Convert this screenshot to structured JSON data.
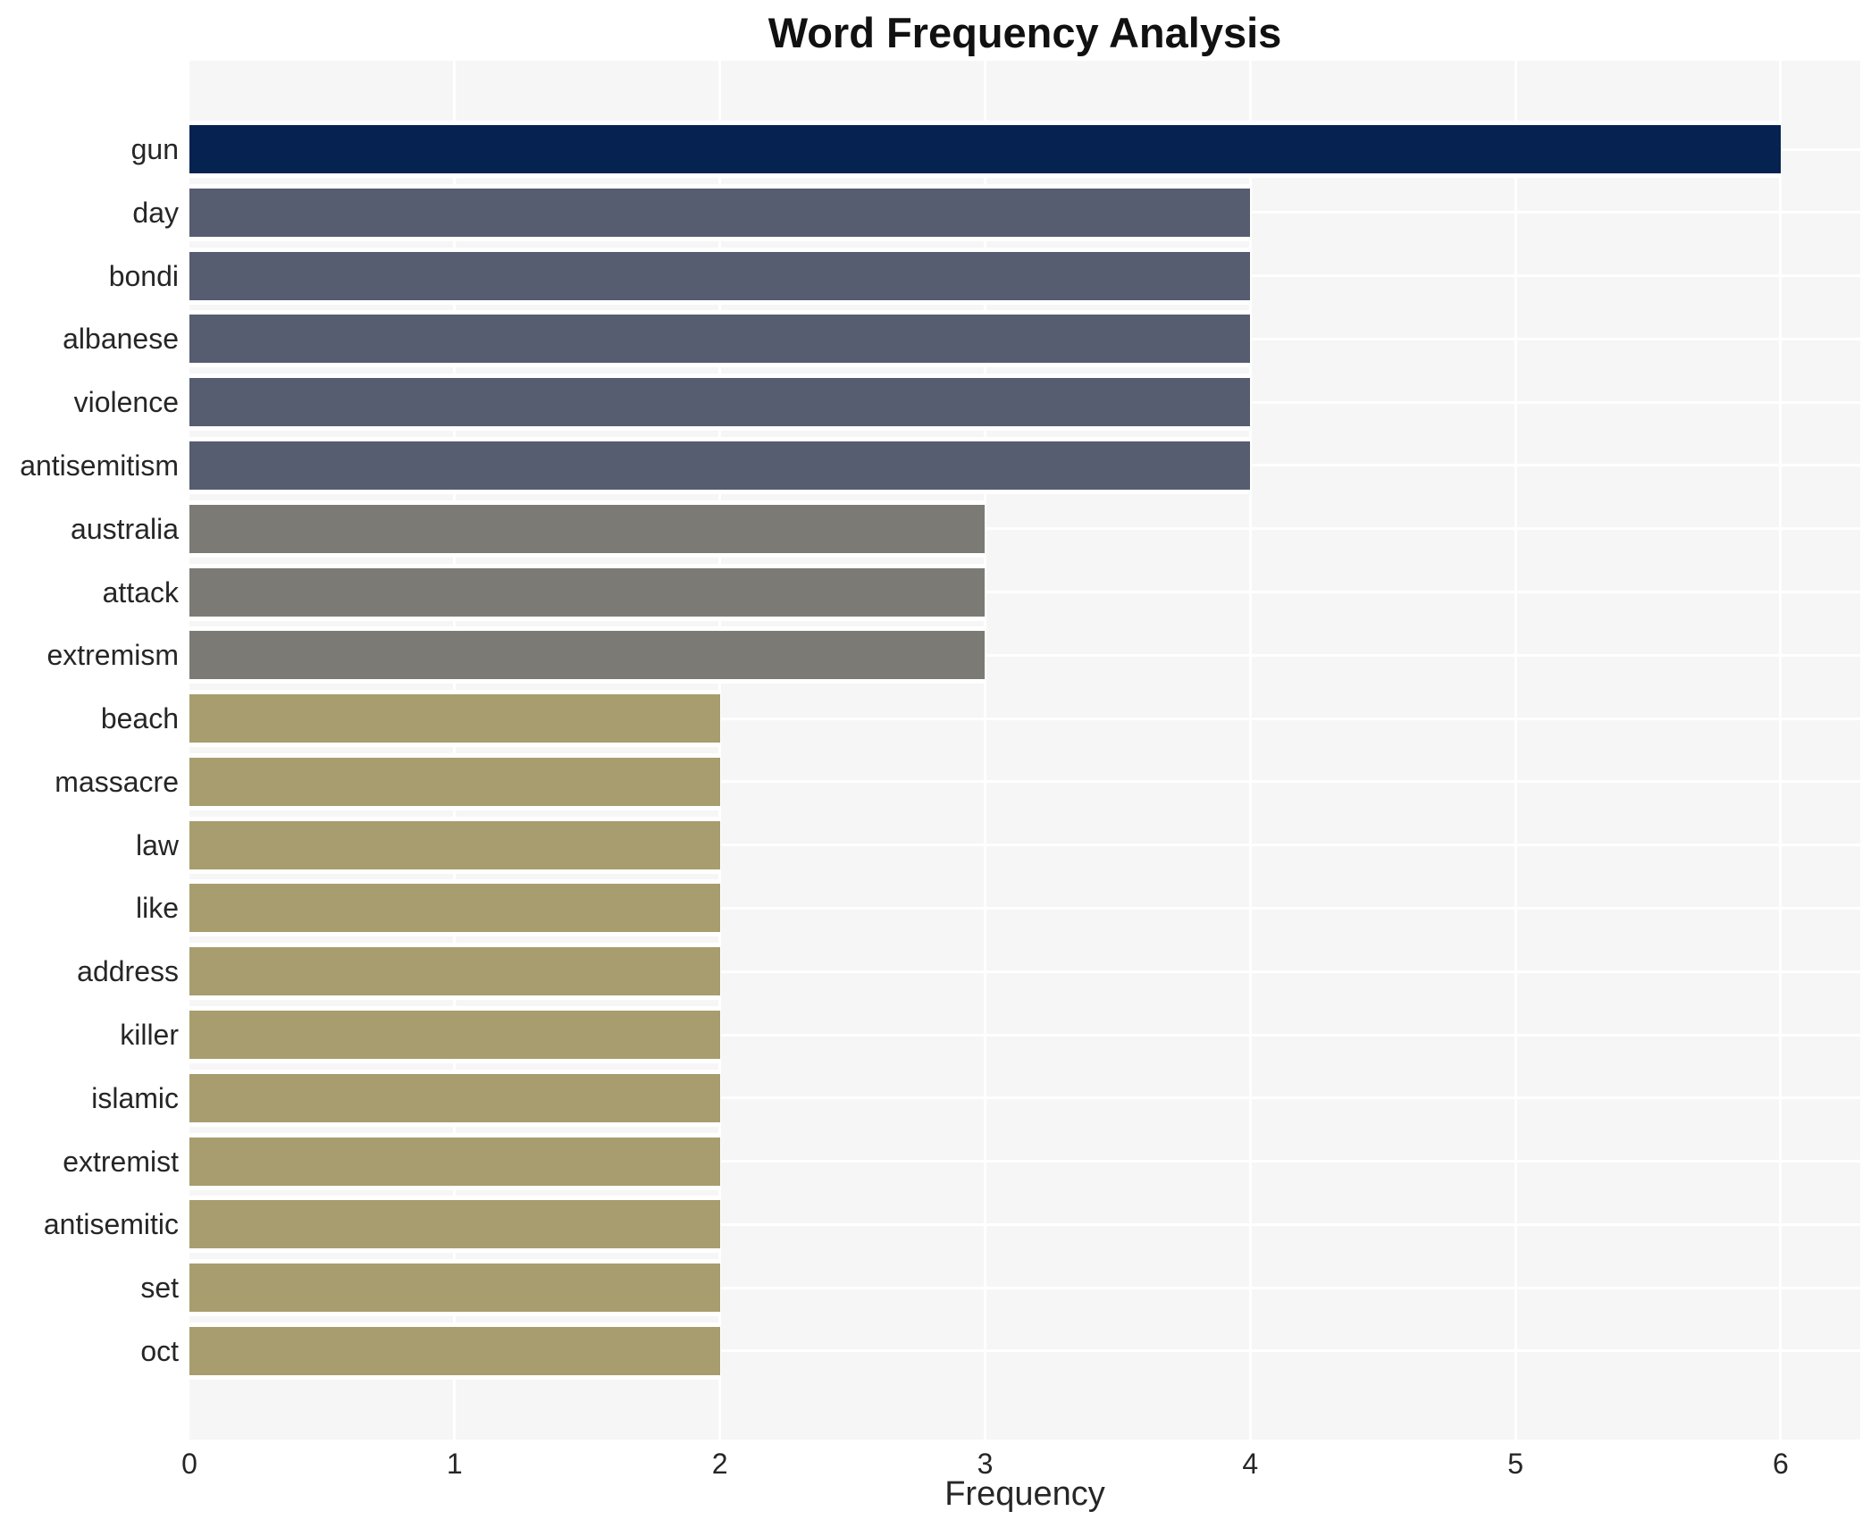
{
  "chart_data": {
    "type": "bar",
    "orientation": "horizontal",
    "title": "Word Frequency Analysis",
    "xlabel": "Frequency",
    "ylabel": "",
    "categories": [
      "gun",
      "day",
      "bondi",
      "albanese",
      "violence",
      "antisemitism",
      "australia",
      "attack",
      "extremism",
      "beach",
      "massacre",
      "law",
      "like",
      "address",
      "killer",
      "islamic",
      "extremist",
      "antisemitic",
      "set",
      "oct"
    ],
    "values": [
      6,
      4,
      4,
      4,
      4,
      4,
      3,
      3,
      3,
      2,
      2,
      2,
      2,
      2,
      2,
      2,
      2,
      2,
      2,
      2
    ],
    "bar_colors": [
      "#052250",
      "#565d71",
      "#565d71",
      "#565d71",
      "#565d71",
      "#565d71",
      "#7b7a74",
      "#7b7a74",
      "#7b7a74",
      "#a79d6e",
      "#a79d6e",
      "#a79d6e",
      "#a79d6e",
      "#a79d6e",
      "#a79d6e",
      "#a79d6e",
      "#a79d6e",
      "#a79d6e",
      "#a79d6e",
      "#a79d6e"
    ],
    "xticks": [
      "0",
      "1",
      "2",
      "3",
      "4",
      "5",
      "6"
    ],
    "xlim": [
      0,
      6.3
    ],
    "grid": true,
    "legend": "none",
    "plot_background": "#f6f6f7",
    "gridline_color": "#ffffff",
    "title_color": "#111111",
    "label_color": "#262626"
  }
}
